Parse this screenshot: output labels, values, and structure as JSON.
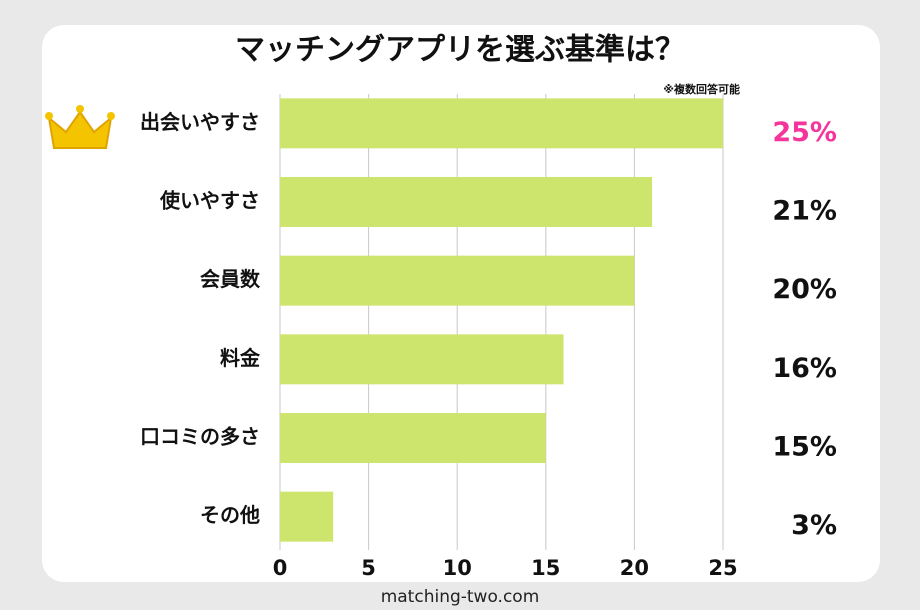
{
  "chart_data": {
    "type": "bar",
    "orientation": "horizontal",
    "title": "マッチングアプリを選ぶ基準は？",
    "note": "※複数回答可能",
    "categories": [
      "出会いやすさ",
      "使いやすさ",
      "会員数",
      "料金",
      "口コミの多さ",
      "その他"
    ],
    "values": [
      25,
      21,
      20,
      16,
      15,
      3
    ],
    "value_labels": [
      "25%",
      "21%",
      "20%",
      "16%",
      "15%",
      "3%"
    ],
    "value_label_colors": [
      "#f5359b",
      "#111111",
      "#111111",
      "#111111",
      "#111111",
      "#111111"
    ],
    "color": "#cde46d",
    "xlim": [
      0,
      25
    ],
    "xticks": [
      0,
      5,
      10,
      15,
      20,
      25
    ],
    "grid": true,
    "footer": "matching-two.com"
  }
}
